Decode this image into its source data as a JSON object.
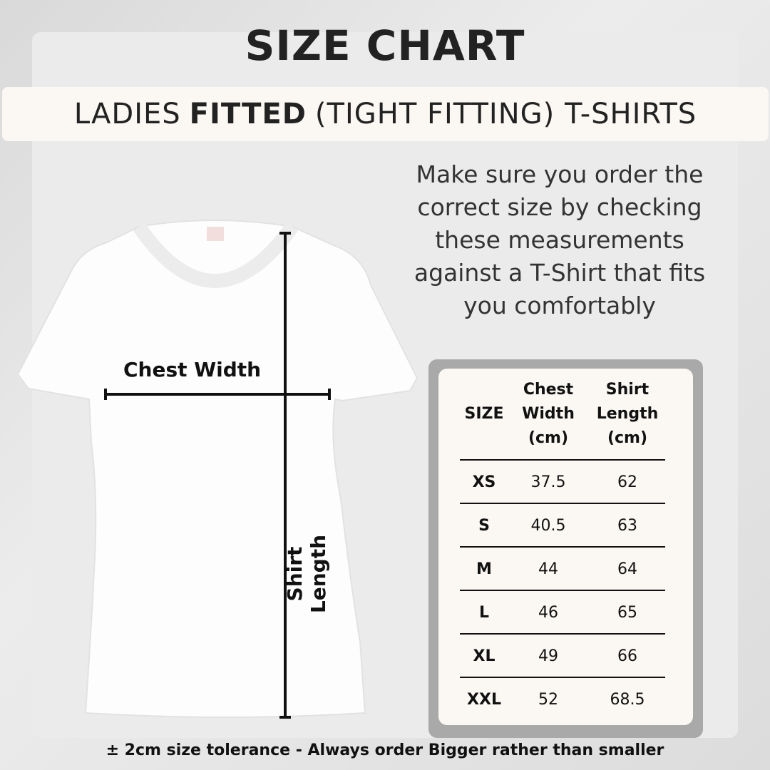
{
  "title": "SIZE CHART",
  "subtitle": {
    "pre": "LADIES",
    "bold": "FITTED",
    "post": "(TIGHT FITTING) T-SHIRTS"
  },
  "intro": [
    "Make sure you order the",
    "correct size by checking",
    "these measurements",
    "against a T-Shirt that fits",
    "you comfortably"
  ],
  "diagram": {
    "chest_label": "Chest Width",
    "length_label": "Shirt Length"
  },
  "table": {
    "headers": {
      "size": "SIZE",
      "chest": [
        "Chest",
        "Width",
        "(cm)"
      ],
      "length": [
        "Shirt",
        "Length",
        "(cm)"
      ]
    },
    "rows": [
      {
        "size": "XS",
        "chest": "37.5",
        "length": "62"
      },
      {
        "size": "S",
        "chest": "40.5",
        "length": "63"
      },
      {
        "size": "M",
        "chest": "44",
        "length": "64"
      },
      {
        "size": "L",
        "chest": "46",
        "length": "65"
      },
      {
        "size": "XL",
        "chest": "49",
        "length": "66"
      },
      {
        "size": "XXL",
        "chest": "52",
        "length": "68.5"
      }
    ]
  },
  "footer": "± 2cm size tolerance - Always order Bigger rather than smaller"
}
